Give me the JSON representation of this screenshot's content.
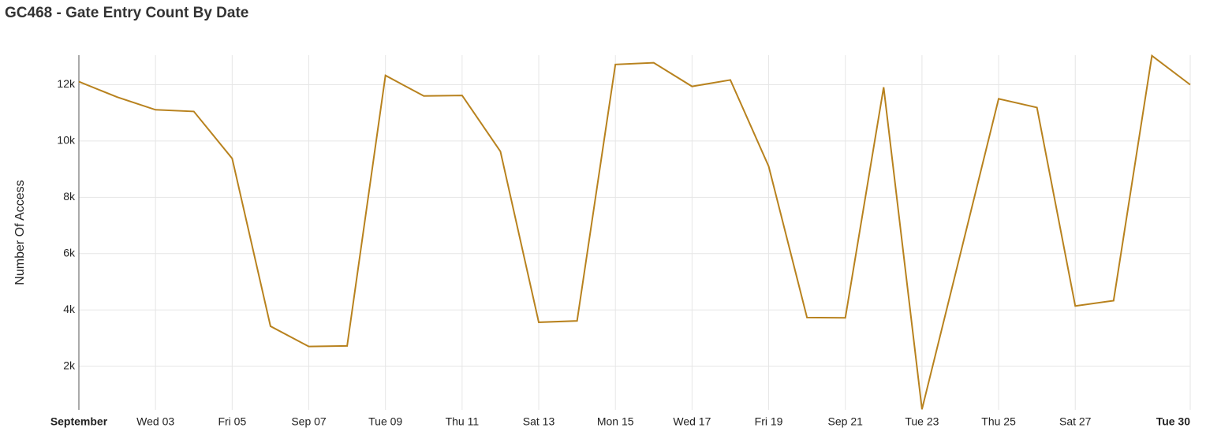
{
  "chart_data": {
    "type": "line",
    "title": "GC468 - Gate Entry Count By Date",
    "y_label": "Number Of Access",
    "categories": [
      "September",
      null,
      "Wed 03",
      null,
      "Fri 05",
      null,
      "Sep 07",
      null,
      "Tue 09",
      null,
      "Thu 11",
      null,
      "Sat 13",
      null,
      "Mon 15",
      null,
      "Wed 17",
      null,
      "Fri 19",
      null,
      "Sep 21",
      null,
      "Tue 23",
      null,
      "Thu 25",
      null,
      "Sat 27",
      null,
      null,
      "Tue 30"
    ],
    "series": [
      {
        "name": "Number Of Access",
        "color": "#b8821e",
        "values": [
          12110,
          11560,
          11110,
          11050,
          9380,
          3420,
          2700,
          2720,
          12330,
          11600,
          11620,
          9630,
          3560,
          3610,
          12720,
          12780,
          11940,
          12170,
          9100,
          3730,
          3720,
          11910,
          470,
          5980,
          11500,
          11190,
          4140,
          4330,
          13030,
          12000
        ]
      }
    ],
    "ylim": [
      450,
      13050
    ],
    "yticks": [
      {
        "value": 2000,
        "label": "2k"
      },
      {
        "value": 4000,
        "label": "4k"
      },
      {
        "value": 6000,
        "label": "6k"
      },
      {
        "value": 8000,
        "label": "8k"
      },
      {
        "value": 10000,
        "label": "10k"
      },
      {
        "value": 12000,
        "label": "12k"
      }
    ],
    "grid": true
  }
}
